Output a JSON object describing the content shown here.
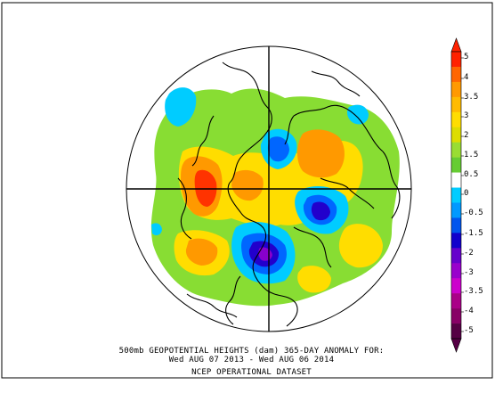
{
  "caption": {
    "line1": "500mb GEOPOTENTIAL HEIGHTS (dam)   365-DAY ANOMALY FOR:",
    "line2": "Wed AUG 07 2013 - Wed AUG 06 2014",
    "line3": "NCEP OPERATIONAL DATASET"
  },
  "colorbar": {
    "labels": [
      "5",
      "4",
      "3.5",
      "3",
      "2",
      "1.5",
      "0.5",
      "0",
      "-0.5",
      "-1.5",
      "-2",
      "-3",
      "-3.5",
      "-4",
      "-5"
    ],
    "colors": [
      "#ff2200",
      "#ff6600",
      "#ff9900",
      "#ffbb00",
      "#ffdd00",
      "#dddd00",
      "#99dd33",
      "#66cc33",
      "#ffffff",
      "#00ccff",
      "#0099ff",
      "#0055ee",
      "#1100cc",
      "#6600cc",
      "#9900cc",
      "#cc00cc",
      "#aa0088",
      "#880066",
      "#550044"
    ]
  },
  "map": {
    "projection": "polar stereographic, northern hemisphere",
    "field": "500mb geopotential height anomaly",
    "colors": {
      "positive_strong": "#ff3300",
      "positive_mid": "#ff9900",
      "positive_low": "#ffdd00",
      "positive_weak": "#88dd33",
      "negative_weak": "#00ccff",
      "negative_mid": "#0066ff",
      "negative_strong": "#2200cc",
      "negative_extreme": "#8800cc"
    }
  }
}
